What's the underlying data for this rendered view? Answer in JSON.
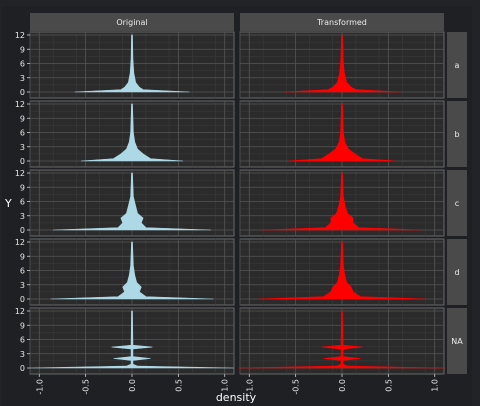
{
  "chart_data": {
    "type": "violin",
    "ylabel": "Y",
    "xlabel": "density",
    "col_facets": [
      "Original",
      "Transformed"
    ],
    "row_facets": [
      "a",
      "b",
      "c",
      "d",
      "NA"
    ],
    "colors": {
      "Original": "#add8e6",
      "Transformed": "#ff0000",
      "background": "#222326",
      "panel": "#2b2b2b",
      "strip": "#4a4a4a",
      "grid": "#555555"
    },
    "ylim": [
      0,
      12
    ],
    "y_ticks": [
      "0",
      "3",
      "6",
      "9",
      "12"
    ],
    "xlim": [
      -1.1,
      1.1
    ],
    "x_ticks": [
      "-1.0",
      "-0.5",
      "0.0",
      "0.5",
      "1.0"
    ],
    "x_tick_values": [
      -1.0,
      -0.5,
      0.0,
      0.5,
      1.0
    ],
    "y_tick_values": [
      0,
      3,
      6,
      9,
      12
    ],
    "density_profiles": {
      "a": {
        "Original": [
          [
            0,
            0.62
          ],
          [
            0.5,
            0.12
          ],
          [
            1,
            0.08
          ],
          [
            2,
            0.04
          ],
          [
            4,
            0.02
          ],
          [
            7,
            0.01
          ],
          [
            12,
            0.005
          ]
        ],
        "Transformed": [
          [
            0,
            0.63
          ],
          [
            0.5,
            0.15
          ],
          [
            1,
            0.1
          ],
          [
            2,
            0.05
          ],
          [
            4,
            0.025
          ],
          [
            7,
            0.012
          ],
          [
            12,
            0.005
          ]
        ]
      },
      "b": {
        "Original": [
          [
            0,
            0.55
          ],
          [
            0.5,
            0.2
          ],
          [
            1.5,
            0.12
          ],
          [
            2.5,
            0.06
          ],
          [
            4,
            0.03
          ],
          [
            6,
            0.015
          ],
          [
            12,
            0.005
          ]
        ],
        "Transformed": [
          [
            0,
            0.58
          ],
          [
            0.5,
            0.22
          ],
          [
            1.5,
            0.14
          ],
          [
            2.5,
            0.07
          ],
          [
            4,
            0.03
          ],
          [
            6,
            0.015
          ],
          [
            12,
            0.005
          ]
        ]
      },
      "c": {
        "Original": [
          [
            0,
            0.85
          ],
          [
            0.5,
            0.15
          ],
          [
            1.5,
            0.1
          ],
          [
            2.5,
            0.12
          ],
          [
            3.5,
            0.06
          ],
          [
            5,
            0.04
          ],
          [
            7,
            0.015
          ],
          [
            12,
            0.005
          ]
        ],
        "Transformed": [
          [
            0,
            0.86
          ],
          [
            0.5,
            0.18
          ],
          [
            1.5,
            0.12
          ],
          [
            2.5,
            0.12
          ],
          [
            3.5,
            0.06
          ],
          [
            5,
            0.035
          ],
          [
            7,
            0.015
          ],
          [
            12,
            0.005
          ]
        ]
      },
      "d": {
        "Original": [
          [
            0,
            0.88
          ],
          [
            0.5,
            0.15
          ],
          [
            1.5,
            0.08
          ],
          [
            2.5,
            0.1
          ],
          [
            3.5,
            0.05
          ],
          [
            5,
            0.03
          ],
          [
            7,
            0.015
          ],
          [
            12,
            0.005
          ]
        ],
        "Transformed": [
          [
            0,
            0.9
          ],
          [
            0.5,
            0.2
          ],
          [
            1.5,
            0.12
          ],
          [
            2.5,
            0.1
          ],
          [
            3.5,
            0.05
          ],
          [
            5,
            0.03
          ],
          [
            7,
            0.015
          ],
          [
            12,
            0.005
          ]
        ]
      },
      "NA": {
        "Original": [
          [
            0,
            1.1
          ],
          [
            0.4,
            0.06
          ],
          [
            0.8,
            0.01
          ],
          [
            1.6,
            0.01
          ],
          [
            2,
            0.2
          ],
          [
            2.4,
            0.01
          ],
          [
            4,
            0.01
          ],
          [
            4.4,
            0.22
          ],
          [
            4.8,
            0.01
          ],
          [
            12,
            0.005
          ]
        ],
        "Transformed": [
          [
            0,
            1.12
          ],
          [
            0.4,
            0.06
          ],
          [
            0.8,
            0.01
          ],
          [
            1.6,
            0.01
          ],
          [
            2,
            0.2
          ],
          [
            2.4,
            0.01
          ],
          [
            4,
            0.01
          ],
          [
            4.4,
            0.22
          ],
          [
            4.8,
            0.01
          ],
          [
            12,
            0.005
          ]
        ]
      }
    }
  }
}
